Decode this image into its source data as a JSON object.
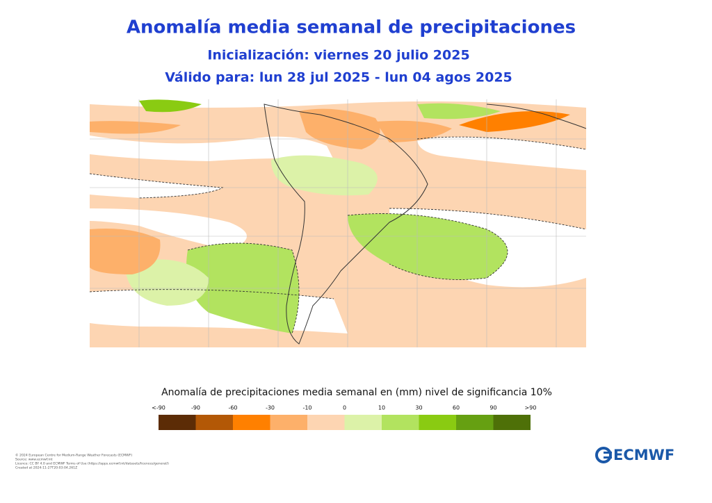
{
  "header": {
    "title": "Anomalía media semanal de precipitaciones",
    "initialization": "Inicialización: viernes 20 julio 2025",
    "validity": "Válido para: lun 28 jul 2025 - lun 04 agos 2025"
  },
  "legend": {
    "title": "Anomalía de precipitaciones media semanal en (mm) nivel de significancia 10%",
    "labels": [
      "<-90",
      "-90",
      "-60",
      "-30",
      "-10",
      "0",
      "10",
      "30",
      "60",
      "90",
      ">90"
    ],
    "colors": [
      "#5c2c06",
      "#b35806",
      "#ff8000",
      "#fdb06a",
      "#fdd5b2",
      "#dcf2a8",
      "#b2e35f",
      "#8acb12",
      "#66a012",
      "#4e7008"
    ]
  },
  "footer": {
    "lines": [
      "© 2024 European Centre for Medium-Range Weather Forecasts (ECMWF)",
      "Source: www.ecmwf.int",
      "Licence: CC BY 4.0 and ECMWF Terms of Use (https://apps.ecmwf.int/datasets/licences/general/)",
      "Created at 2024-11-27T20:03:04.261Z"
    ],
    "logo": "ECMWF"
  }
}
